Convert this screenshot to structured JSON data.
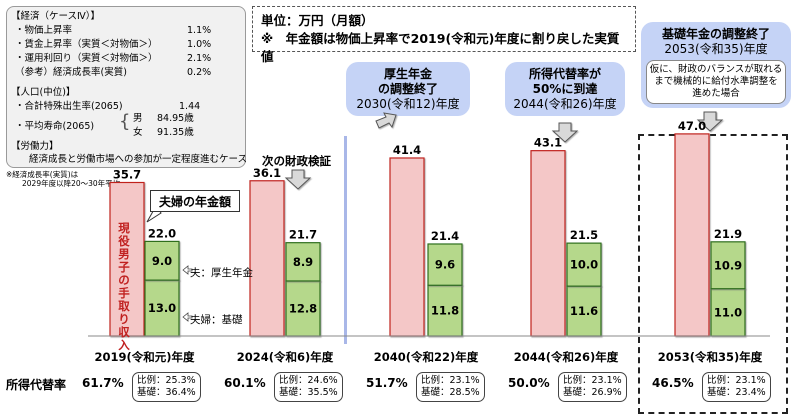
{
  "header": {
    "unit": "単位：万円（月額）",
    "note": "※　年金額は物価上昇率で2019(令和元)年度に割り戻した実質値"
  },
  "assumptions": {
    "econ_title": "【経済（ケースⅣ）】",
    "econ_rows": [
      {
        "label": "・物価上昇率",
        "value": "1.1%"
      },
      {
        "label": "・賃金上昇率（実質＜対物価＞）",
        "value": "1.0%"
      },
      {
        "label": "・運用利回り（実質＜対物価＞）",
        "value": "2.1%"
      },
      {
        "label": "（参考）経済成長率(実質)",
        "value": "0.2%"
      }
    ],
    "pop_title": "【人口(中位)】",
    "fertility": {
      "label": "・合計特殊出生率(2065)",
      "value": "1.44"
    },
    "life": {
      "label": "・平均寿命(2065)",
      "male_label": "男",
      "male_value": "84.95歳",
      "female_label": "女",
      "female_value": "91.35歳"
    },
    "labor_title": "【労働力】",
    "labor_text": "経済成長と労働市場への参加が一定程度進むケース",
    "footnote1": "※経済成長率(実質)は",
    "footnote2": "2029年度以降20～30年平均"
  },
  "callouts": {
    "kosei_title": "厚生年金\nの調整終了",
    "kosei_year": "2030(令和12)年度",
    "rate50_title": "所得代替率が\n50%に到達",
    "rate50_year": "2044(令和26)年度",
    "kiso_title": "基礎年金の調整終了",
    "kiso_year": "2053(令和35)年度",
    "kiso_note": "仮に、財政のバランスが取れる\nまで機械的に給付水準調整を\n進めた場合",
    "zaisei": "次の財政検証"
  },
  "labels": {
    "couple_pension": "夫婦の年金額",
    "takehome": "現役男子の手取り収入",
    "husband_kosei": "夫：厚生年金",
    "couple_kiso": "夫婦：基礎",
    "row_title": "所得代替率",
    "hirei": "比例",
    "kiso": "基礎"
  },
  "chart_data": {
    "type": "bar",
    "title": "",
    "unit": "万円（月額）",
    "categories": [
      "2019(令和元)年度",
      "2024(令和6)年度",
      "2040(令和22)年度",
      "2044(令和26)年度",
      "2053(令和35)年度"
    ],
    "series": [
      {
        "name": "現役男子の手取り収入",
        "values": [
          35.7,
          36.1,
          41.4,
          43.1,
          47.0
        ]
      },
      {
        "name": "夫：厚生年金",
        "values": [
          9.0,
          8.9,
          9.6,
          10.0,
          10.9
        ]
      },
      {
        "name": "夫婦：基礎",
        "values": [
          13.0,
          12.8,
          11.8,
          11.6,
          11.0
        ]
      }
    ],
    "pension_totals": [
      22.0,
      21.7,
      21.4,
      21.5,
      21.9
    ],
    "replacement_rate": [
      "61.7%",
      "60.1%",
      "51.7%",
      "50.0%",
      "46.5%"
    ],
    "hirei_rate": [
      "25.3%",
      "24.6%",
      "23.1%",
      "23.1%",
      "23.1%"
    ],
    "kiso_rate": [
      "36.4%",
      "35.5%",
      "28.5%",
      "26.9%",
      "23.4%"
    ],
    "value_labels": {
      "takehome": [
        "35.7",
        "36.1",
        "41.4",
        "43.1",
        "47.0"
      ],
      "totals": [
        "22.0",
        "21.7",
        "21.4",
        "21.5",
        "21.9"
      ],
      "kosei": [
        "9.0",
        "8.9",
        "9.6",
        "10.0",
        "10.9"
      ],
      "kiso": [
        "13.0",
        "12.8",
        "11.8",
        "11.6",
        "11.0"
      ]
    },
    "colors": {
      "takehome_fill": "#f4c7c7",
      "takehome_border": "#c0201f",
      "pension_fill": "#b5d88b",
      "pension_border": "#2f6e1e"
    }
  }
}
